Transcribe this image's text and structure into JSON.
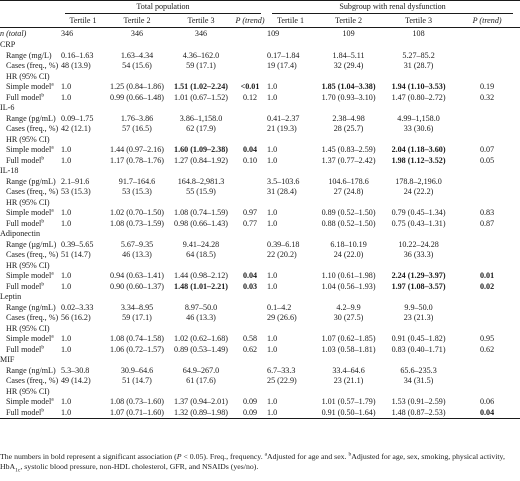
{
  "header": {
    "group_total": "Total population",
    "group_renal": "Subgroup with renal dysfunction",
    "cols": [
      "Tertile 1",
      "Tertile 2",
      "Tertile 3",
      "P (trend)",
      "Tertile 1",
      "Tertile 2",
      "Tertile 3",
      "P (trend)"
    ]
  },
  "n_row": {
    "label": "n (total)",
    "cells": [
      "346",
      "346",
      "346",
      "",
      "109",
      "109",
      "108",
      ""
    ]
  },
  "sections": [
    {
      "name": "CRP",
      "range_label": "Range (mg/L)",
      "rows": [
        {
          "kind": "range",
          "cells": [
            "0.16–1.63",
            "1.63–4.34",
            "4.36–162.0",
            "",
            "0.17–1.84",
            "1.84–5.11",
            "5.27–85.2",
            ""
          ]
        },
        {
          "kind": "cases",
          "cells": [
            "48 (13.9)",
            "54 (15.6)",
            "59 (17.1)",
            "",
            "19 (17.4)",
            "32 (29.4)",
            "31 (28.7)",
            ""
          ]
        },
        {
          "kind": "simple",
          "cells": [
            "1.0",
            "1.25 (0.84–1.86)",
            "1.51 (1.02–2.24)",
            "<0.01",
            "1.0",
            "1.85 (1.04–3.38)",
            "1.94 (1.10–3.53)",
            "0.19"
          ],
          "bold": [
            2,
            3,
            5,
            6
          ]
        },
        {
          "kind": "full",
          "cells": [
            "1.0",
            "0.99 (0.66–1.48)",
            "1.01 (0.67–1.52)",
            "0.12",
            "1.0",
            "1.70 (0.93–3.10)",
            "1.47 (0.80–2.72)",
            "0.32"
          ],
          "bold": []
        }
      ]
    },
    {
      "name": "IL-6",
      "range_label": "Range (pg/mL)",
      "rows": [
        {
          "kind": "range",
          "cells": [
            "0.09–1.75",
            "1.76–3.86",
            "3.86–1,158.0",
            "",
            "0.41–2.37",
            "2.38–4.98",
            "4.99–1,158.0",
            ""
          ]
        },
        {
          "kind": "cases",
          "cells": [
            "42 (12.1)",
            "57 (16.5)",
            "62 (17.9)",
            "",
            "21 (19.3)",
            "28 (25.7)",
            "33 (30.6)",
            ""
          ]
        },
        {
          "kind": "simple",
          "cells": [
            "1.0",
            "1.44 (0.97–2.16)",
            "1.60 (1.09–2.38)",
            "0.04",
            "1.0",
            "1.45 (0.83–2.59)",
            "2.04 (1.18–3.60)",
            "0.07"
          ],
          "bold": [
            2,
            3,
            6
          ]
        },
        {
          "kind": "full",
          "cells": [
            "1.0",
            "1.17 (0.78–1.76)",
            "1.27 (0.84–1.92)",
            "0.10",
            "1.0",
            "1.37 (0.77–2.42)",
            "1.98 (1.12–3.52)",
            "0.05"
          ],
          "bold": [
            6
          ]
        }
      ]
    },
    {
      "name": "IL-18",
      "range_label": "Range (pg/mL)",
      "rows": [
        {
          "kind": "range",
          "cells": [
            "2.1–91.6",
            "91.7–164.6",
            "164.8–2,981.3",
            "",
            "3.5–103.6",
            "104.6–178.6",
            "178.8–2,196.0",
            ""
          ]
        },
        {
          "kind": "cases",
          "cells": [
            "53 (15.3)",
            "53 (15.3)",
            "55 (15.9)",
            "",
            "31 (28.4)",
            "27 (24.8)",
            "24 (22.2)",
            ""
          ]
        },
        {
          "kind": "simple",
          "cells": [
            "1.0",
            "1.02 (0.70–1.50)",
            "1.08 (0.74–1.59)",
            "0.97",
            "1.0",
            "0.89 (0.52–1.50)",
            "0.79 (0.45–1.34)",
            "0.83"
          ],
          "bold": []
        },
        {
          "kind": "full",
          "cells": [
            "1.0",
            "1.08 (0.73–1.59)",
            "0.98 (0.66–1.43)",
            "0.77",
            "1.0",
            "0.88 (0.52–1.50)",
            "0.75 (0.43–1.31)",
            "0.87"
          ],
          "bold": []
        }
      ]
    },
    {
      "name": "Adiponectin",
      "range_label": "Range (µg/mL)",
      "rows": [
        {
          "kind": "range",
          "cells": [
            "0.39–5.65",
            "5.67–9.35",
            "9.41–24.28",
            "",
            "0.39–6.18",
            "6.18–10.19",
            "10.22–24.28",
            ""
          ]
        },
        {
          "kind": "cases",
          "cells": [
            "51 (14.7)",
            "46 (13.3)",
            "64 (18.5)",
            "",
            "22 (20.2)",
            "24 (22.0)",
            "36 (33.3)",
            ""
          ]
        },
        {
          "kind": "simple",
          "cells": [
            "1.0",
            "0.94 (0.63–1.41)",
            "1.44 (0.98–2.12)",
            "0.04",
            "1.0",
            "1.10 (0.61–1.98)",
            "2.24 (1.29–3.97)",
            "0.01"
          ],
          "bold": [
            3,
            6,
            7
          ]
        },
        {
          "kind": "full",
          "cells": [
            "1.0",
            "0.90 (0.60–1.37)",
            "1.48 (1.01–2.21)",
            "0.03",
            "1.0",
            "1.04 (0.56–1.93)",
            "1.97 (1.08–3.57)",
            "0.02"
          ],
          "bold": [
            2,
            3,
            6,
            7
          ]
        }
      ]
    },
    {
      "name": "Leptin",
      "range_label": "Range (ng/mL)",
      "rows": [
        {
          "kind": "range",
          "cells": [
            "0.02–3.33",
            "3.34–8.95",
            "8.97–50.0",
            "",
            "0.1–4.2",
            "4.2–9.9",
            "9.9–50.0",
            ""
          ]
        },
        {
          "kind": "cases",
          "cells": [
            "56 (16.2)",
            "59 (17.1)",
            "46 (13.3)",
            "",
            "29 (26.6)",
            "30 (27.5)",
            "23 (21.3)",
            ""
          ]
        },
        {
          "kind": "simple",
          "cells": [
            "1.0",
            "1.08 (0.74–1.58)",
            "1.02 (0.62–1.68)",
            "0.58",
            "1.0",
            "1.07 (0.62–1.85)",
            "0.91 (0.45–1.82)",
            "0.95"
          ],
          "bold": []
        },
        {
          "kind": "full",
          "cells": [
            "1.0",
            "1.06 (0.72–1.57)",
            "0.89 (0.53–1.49)",
            "0.62",
            "1.0",
            "1.03 (0.58–1.81)",
            "0.83 (0.40–1.71)",
            "0.62"
          ],
          "bold": []
        }
      ]
    },
    {
      "name": "MIF",
      "range_label": "Range (ng/mL)",
      "rows": [
        {
          "kind": "range",
          "cells": [
            "5.3–30.8",
            "30.9–64.6",
            "64.9–267.0",
            "",
            "6.7–33.3",
            "33.4–64.6",
            "65.6–235.3",
            ""
          ]
        },
        {
          "kind": "cases",
          "cells": [
            "49 (14.2)",
            "51 (14.7)",
            "61 (17.6)",
            "",
            "25 (22.9)",
            "23 (21.1)",
            "34 (31.5)",
            ""
          ]
        },
        {
          "kind": "simple",
          "cells": [
            "1.0",
            "1.08 (0.73–1.60)",
            "1.37 (0.94–2.01)",
            "0.09",
            "1.0",
            "1.01 (0.57–1.79)",
            "1.53 (0.91–2.59)",
            "0.06"
          ],
          "bold": []
        },
        {
          "kind": "full",
          "cells": [
            "1.0",
            "1.07 (0.71–1.60)",
            "1.32 (0.89–1.98)",
            "0.09",
            "1.0",
            "0.91 (0.50–1.64)",
            "1.48 (0.87–2.53)",
            "0.04"
          ],
          "bold": [
            7
          ]
        }
      ]
    }
  ],
  "row_labels": {
    "cases": "Cases (freq., %)",
    "hr": "HR (95% CI)",
    "simple": "Simple model",
    "simple_mark": "a",
    "full": "Full model",
    "full_mark": "b"
  },
  "footnote": {
    "line1_start": "The numbers in bold represent a significant association (",
    "line1_p": "P",
    "line1_end": " < 0.05). Freq., frequency. ",
    "mark_a": "a",
    "line1_a": "Adjusted for age and sex. ",
    "mark_b": "b",
    "line1_b": "Adjusted for age, sex, smoking, physical activity,",
    "line2_pre": "HbA",
    "line2_sub": "1c",
    "line2_post": ", systolic blood pressure, non-HDL cholesterol, GFR, and NSAIDs (yes/no)."
  }
}
